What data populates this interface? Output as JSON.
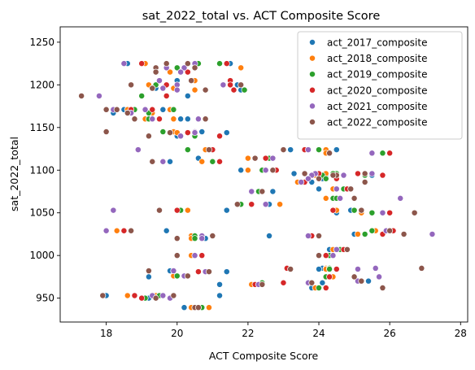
{
  "chart_data": {
    "type": "scatter",
    "title": "sat_2022_total vs. ACT Composite Score",
    "xlabel": "ACT Composite Score",
    "ylabel": "sat_2022_total",
    "xlim": [
      16.7,
      28.2
    ],
    "ylim": [
      922,
      1268
    ],
    "xticks": [
      18,
      20,
      22,
      24,
      26,
      28
    ],
    "yticks": [
      950,
      1000,
      1050,
      1100,
      1150,
      1200,
      1250
    ],
    "grid": false,
    "legend_position": "top-right",
    "y": [
      1225,
      1225,
      1220,
      1220,
      1215,
      1205,
      1200,
      1200,
      1196,
      1194,
      1187,
      1171,
      1171,
      1167,
      1160,
      1160,
      1145,
      1144,
      1140,
      1124,
      1124,
      1120,
      1114,
      1110,
      1100,
      1096,
      1096,
      1094,
      1094,
      1090,
      1086,
      1078,
      1075,
      1067,
      1067,
      1060,
      1053,
      1053,
      1050,
      1029,
      1029,
      1025,
      1023,
      1023,
      1020,
      1007,
      1000,
      1000,
      985,
      984,
      982,
      981,
      976,
      975,
      970,
      968,
      966,
      962,
      953,
      953,
      950,
      939,
      939
    ],
    "series": [
      {
        "name": "act_2017_composite",
        "color": "#1f77b4",
        "x": [
          18.6,
          21.5,
          20.5,
          20.0,
          20.1,
          20.0,
          19.2,
          21.7,
          19.4,
          21.8,
          20.3,
          19.6,
          18.5,
          18.2,
          20.3,
          20.1,
          20.7,
          21.4,
          20.0,
          23.2,
          24.5,
          25.5,
          20.6,
          19.8,
          21.8,
          23.6,
          23.3,
          25.5,
          24.2,
          24.1,
          23.8,
          24.0,
          22.7,
          25.0,
          24.2,
          22.6,
          24.9,
          21.4,
          24.5,
          25.5,
          19.7,
          25.0,
          22.6,
          20.7,
          20.8,
          24.3,
          24.2,
          24.2,
          24.1,
          24.0,
          19.8,
          21.4,
          20.0,
          19.2,
          25.4,
          24.1,
          21.2,
          23.8,
          18.0,
          21.2,
          19.2,
          20.5,
          20.2
        ]
      },
      {
        "name": "act_2018_composite",
        "color": "#ff7f0e",
        "x": [
          19.1,
          20.6,
          21.8,
          19.4,
          19.8,
          20.5,
          19.2,
          21.5,
          19.9,
          20.5,
          19.0,
          19.8,
          18.6,
          19.3,
          19.9,
          19.1,
          19.9,
          20.0,
          20.5,
          24.2,
          20.8,
          24.2,
          22.0,
          20.7,
          22.0,
          24.2,
          23.9,
          25.3,
          23.9,
          24.0,
          23.4,
          24.4,
          22.3,
          24.4,
          24.2,
          22.9,
          24.5,
          20.3,
          25.2,
          25.6,
          18.3,
          25.1,
          23.8,
          20.4,
          20.4,
          24.4,
          24.2,
          20.4,
          24.2,
          24.2,
          19.9,
          20.6,
          19.9,
          24.4,
          25.1,
          23.8,
          22.1,
          23.9,
          18.6,
          19.4,
          19.1,
          20.4,
          20.9
        ]
      },
      {
        "name": "act_2019_composite",
        "color": "#2ca02c",
        "x": [
          20.6,
          21.2,
          19.7,
          20.0,
          20.1,
          20.4,
          19.4,
          21.5,
          19.3,
          21.9,
          19.0,
          19.9,
          18.8,
          19.2,
          20.6,
          19.2,
          19.6,
          19.8,
          20.5,
          24.0,
          20.3,
          25.8,
          22.6,
          21.0,
          22.4,
          24.5,
          24.4,
          25.3,
          24.1,
          24.2,
          23.5,
          24.7,
          22.3,
          24.4,
          24.5,
          21.8,
          25.0,
          20.1,
          25.5,
          25.5,
          18.5,
          25.3,
          24.0,
          20.5,
          20.5,
          24.6,
          24.3,
          20.5,
          24.3,
          24.3,
          19.9,
          20.6,
          20.0,
          24.2,
          25.1,
          22.4,
          22.2,
          24.0,
          18.8,
          19.5,
          19.1,
          20.5,
          20.7
        ]
      },
      {
        "name": "act_2020_composite",
        "color": "#d62728",
        "x": [
          19.0,
          21.4,
          20.2,
          20.5,
          20.3,
          21.5,
          19.7,
          21.5,
          19.3,
          21.6,
          19.7,
          19.3,
          18.7,
          18.6,
          20.6,
          19.5,
          20.5,
          20.3,
          21.2,
          23.6,
          21.0,
          26.0,
          22.5,
          21.2,
          22.8,
          24.0,
          25.1,
          25.8,
          24.5,
          24.5,
          23.6,
          24.8,
          22.4,
          25.0,
          25.0,
          22.1,
          24.4,
          20.0,
          26.0,
          26.1,
          18.5,
          25.8,
          23.8,
          20.7,
          20.7,
          24.7,
          24.2,
          20.7,
          23.1,
          24.5,
          19.9,
          20.6,
          20.2,
          24.3,
          25.2,
          23.0,
          22.2,
          24.2,
          18.8,
          19.3,
          19.0,
          20.6,
          20.6
        ]
      },
      {
        "name": "act_2021_composite",
        "color": "#9467bd",
        "x": [
          18.5,
          20.5,
          19.7,
          20.2,
          20.1,
          19.5,
          20.0,
          21.3,
          19.6,
          20.0,
          17.8,
          19.1,
          18.2,
          18.7,
          20.6,
          19.3,
          20.5,
          20.5,
          20.1,
          23.7,
          18.9,
          25.5,
          22.7,
          19.6,
          22.5,
          23.9,
          25.5,
          24.7,
          23.8,
          23.7,
          23.5,
          24.5,
          22.1,
          26.3,
          24.6,
          22.5,
          25.2,
          18.2,
          25.8,
          25.9,
          18.0,
          27.2,
          23.7,
          20.7,
          20.7,
          24.5,
          24.4,
          20.5,
          25.6,
          25.1,
          19.9,
          20.8,
          20.2,
          25.7,
          25.1,
          23.7,
          22.3,
          25.8,
          19.3,
          19.6,
          19.8,
          20.5,
          20.6
        ]
      },
      {
        "name": "act_2022_composite",
        "color": "#8c564b",
        "x": [
          19.7,
          20.3,
          20.5,
          19.4,
          19.4,
          20.4,
          18.7,
          21.8,
          19.3,
          20.8,
          17.3,
          18.0,
          18.3,
          18.6,
          20.8,
          18.8,
          18.0,
          19.8,
          19.2,
          23.0,
          20.9,
          24.3,
          22.2,
          19.3,
          22.7,
          23.6,
          25.3,
          24.5,
          24.4,
          24.0,
          25.3,
          24.9,
          22.4,
          25.0,
          25.0,
          21.7,
          25.2,
          19.5,
          26.7,
          26.0,
          18.7,
          26.4,
          24.0,
          21.0,
          20.0,
          24.8,
          24.0,
          20.0,
          26.9,
          23.2,
          19.2,
          20.9,
          20.3,
          25.0,
          25.2,
          23.8,
          22.4,
          25.8,
          17.9,
          19.9,
          19.4,
          20.5,
          20.6
        ]
      }
    ]
  }
}
